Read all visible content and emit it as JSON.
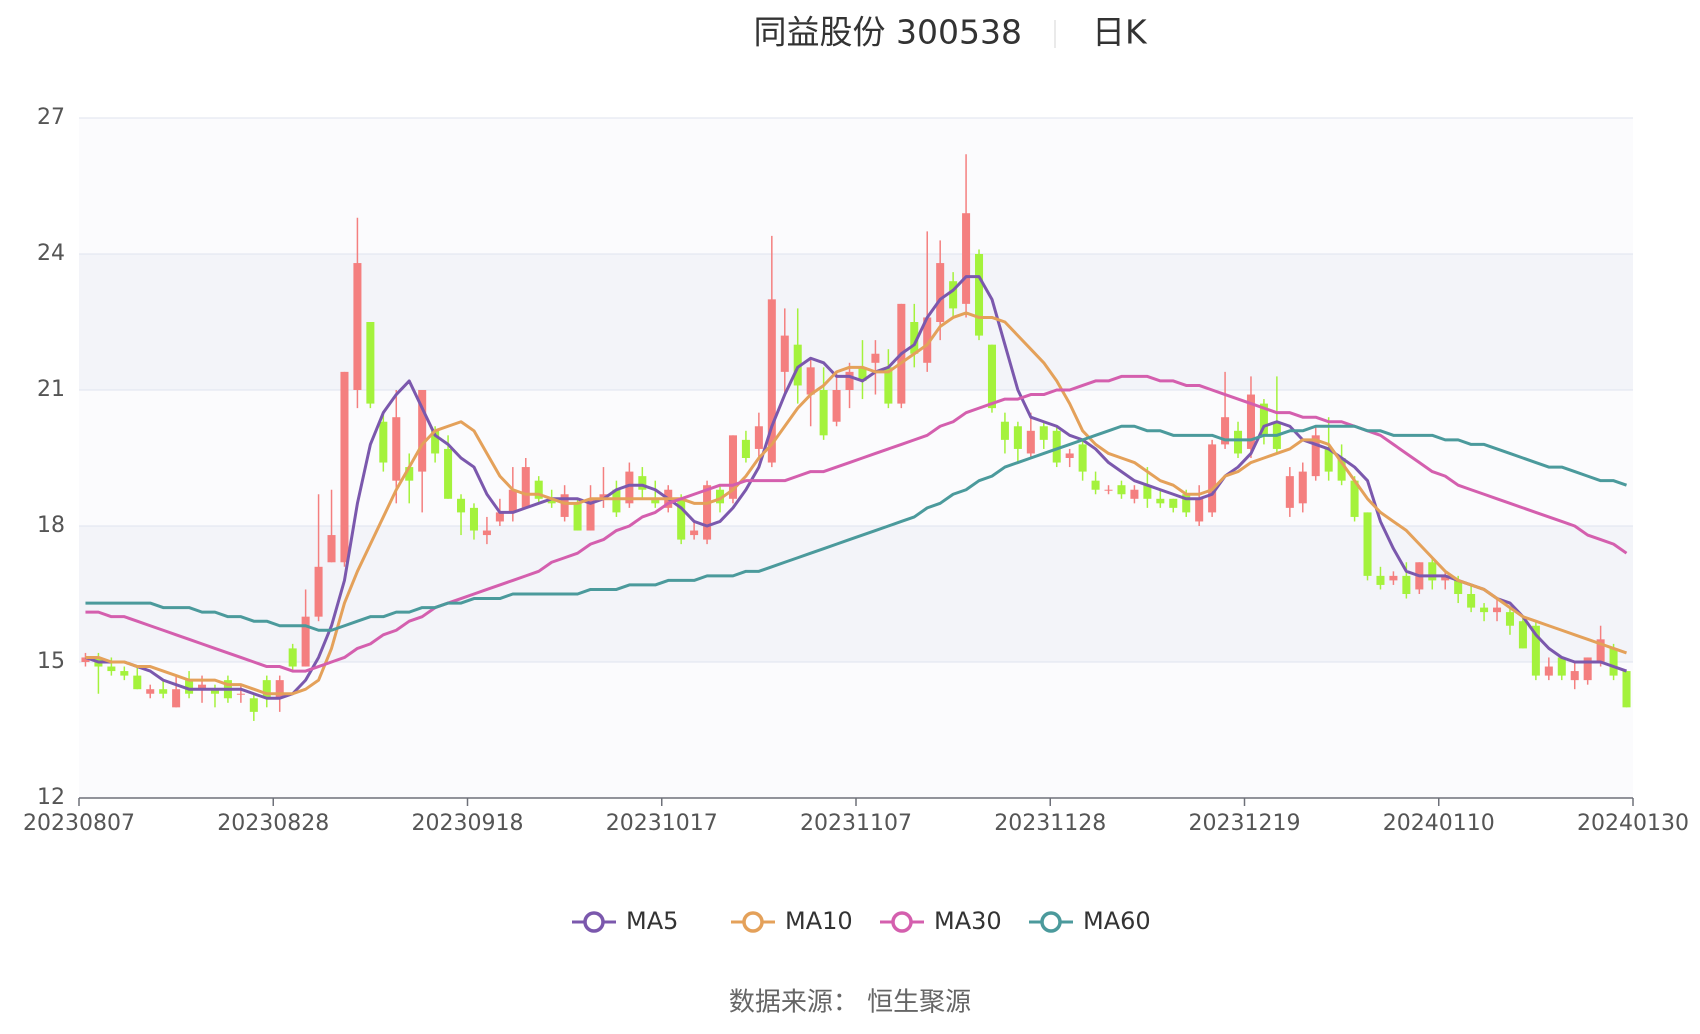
{
  "chart_data": {
    "type": "candlestick",
    "title": "同益股份 300538",
    "subtitle": "日K",
    "source": "数据来源： 恒生聚源",
    "up_color": "#f47f7f",
    "down_color": "#a4f23c",
    "grid": true,
    "ylim": [
      12,
      27
    ],
    "yticks": [
      12,
      15,
      18,
      21,
      24,
      27
    ],
    "categories": [
      "20230807",
      null,
      null,
      null,
      null,
      null,
      null,
      null,
      null,
      null,
      null,
      null,
      null,
      null,
      null,
      "20230828",
      null,
      null,
      null,
      null,
      null,
      null,
      null,
      null,
      null,
      null,
      null,
      null,
      null,
      null,
      "20230918",
      null,
      null,
      null,
      null,
      null,
      null,
      null,
      null,
      null,
      null,
      null,
      null,
      null,
      null,
      "20231017",
      null,
      null,
      null,
      null,
      null,
      null,
      null,
      null,
      null,
      null,
      null,
      null,
      null,
      null,
      "20231107",
      null,
      null,
      null,
      null,
      null,
      null,
      null,
      null,
      null,
      null,
      null,
      null,
      null,
      null,
      "20231128",
      null,
      null,
      null,
      null,
      null,
      null,
      null,
      null,
      null,
      null,
      null,
      null,
      null,
      null,
      "20231219",
      null,
      null,
      null,
      null,
      null,
      null,
      null,
      null,
      null,
      null,
      null,
      null,
      null,
      null,
      "20240110",
      null,
      null,
      null,
      null,
      null,
      null,
      null,
      null,
      null,
      null,
      null,
      null,
      null,
      "20240130"
    ],
    "candles": [
      [
        15.0,
        15.1,
        14.9,
        15.2
      ],
      [
        15.1,
        14.9,
        14.3,
        15.2
      ],
      [
        14.9,
        14.8,
        14.7,
        15.1
      ],
      [
        14.8,
        14.7,
        14.6,
        14.9
      ],
      [
        14.7,
        14.4,
        14.4,
        14.9
      ],
      [
        14.3,
        14.4,
        14.2,
        14.5
      ],
      [
        14.4,
        14.3,
        14.2,
        14.6
      ],
      [
        14.0,
        14.4,
        14.0,
        14.7
      ],
      [
        14.6,
        14.3,
        14.2,
        14.8
      ],
      [
        14.4,
        14.5,
        14.1,
        14.7
      ],
      [
        14.4,
        14.3,
        14.0,
        14.5
      ],
      [
        14.6,
        14.2,
        14.1,
        14.7
      ],
      [
        14.3,
        14.3,
        14.1,
        14.5
      ],
      [
        14.2,
        13.9,
        13.7,
        14.3
      ],
      [
        14.6,
        14.2,
        14.0,
        14.7
      ],
      [
        14.2,
        14.6,
        13.9,
        14.7
      ],
      [
        15.3,
        14.9,
        14.8,
        15.4
      ],
      [
        14.9,
        16.0,
        14.9,
        16.6
      ],
      [
        16.0,
        17.1,
        15.9,
        18.7
      ],
      [
        17.2,
        17.8,
        17.2,
        18.8
      ],
      [
        17.2,
        21.4,
        17.1,
        21.4
      ],
      [
        21.0,
        23.8,
        20.6,
        24.8
      ],
      [
        22.5,
        20.7,
        20.6,
        22.5
      ],
      [
        20.3,
        19.4,
        19.2,
        20.5
      ],
      [
        19.0,
        20.4,
        18.5,
        21.0
      ],
      [
        19.3,
        19.0,
        18.5,
        19.6
      ],
      [
        19.2,
        21.0,
        18.3,
        21.0
      ],
      [
        20.1,
        19.6,
        19.4,
        20.2
      ],
      [
        19.7,
        18.6,
        18.6,
        20.0
      ],
      [
        18.6,
        18.3,
        17.8,
        18.7
      ],
      [
        18.4,
        17.9,
        17.7,
        18.5
      ],
      [
        17.8,
        17.9,
        17.6,
        18.2
      ],
      [
        18.1,
        18.3,
        18.0,
        18.6
      ],
      [
        18.3,
        18.8,
        18.1,
        19.3
      ],
      [
        18.4,
        19.3,
        18.4,
        19.5
      ],
      [
        19.0,
        18.6,
        18.5,
        19.1
      ],
      [
        18.6,
        18.5,
        18.4,
        18.8
      ],
      [
        18.2,
        18.7,
        18.1,
        18.9
      ],
      [
        18.5,
        17.9,
        17.9,
        18.6
      ],
      [
        17.9,
        18.6,
        17.9,
        18.9
      ],
      [
        18.6,
        18.7,
        18.4,
        19.3
      ],
      [
        18.8,
        18.3,
        18.2,
        19.0
      ],
      [
        18.5,
        19.2,
        18.4,
        19.4
      ],
      [
        19.1,
        18.8,
        18.6,
        19.3
      ],
      [
        18.6,
        18.5,
        18.4,
        19.0
      ],
      [
        18.4,
        18.8,
        18.3,
        18.9
      ],
      [
        18.6,
        17.7,
        17.6,
        18.7
      ],
      [
        17.8,
        17.9,
        17.7,
        18.1
      ],
      [
        17.7,
        18.9,
        17.6,
        19.0
      ],
      [
        18.8,
        18.5,
        18.3,
        18.9
      ],
      [
        18.6,
        20.0,
        18.5,
        20.0
      ],
      [
        19.9,
        19.5,
        19.4,
        20.1
      ],
      [
        19.7,
        20.2,
        19.5,
        20.5
      ],
      [
        19.4,
        23.0,
        19.3,
        24.4
      ],
      [
        21.4,
        22.2,
        20.9,
        22.8
      ],
      [
        22.0,
        21.1,
        20.7,
        22.8
      ],
      [
        20.9,
        21.5,
        20.2,
        21.7
      ],
      [
        21.0,
        20.0,
        19.9,
        21.5
      ],
      [
        20.3,
        21.0,
        20.2,
        21.4
      ],
      [
        21.0,
        21.4,
        20.6,
        21.6
      ],
      [
        21.5,
        21.2,
        20.8,
        22.1
      ],
      [
        21.6,
        21.8,
        20.9,
        22.1
      ],
      [
        21.5,
        20.7,
        20.6,
        21.9
      ],
      [
        20.7,
        22.9,
        20.6,
        22.9
      ],
      [
        22.5,
        21.8,
        21.5,
        22.9
      ],
      [
        21.6,
        22.6,
        21.4,
        24.5
      ],
      [
        22.5,
        23.8,
        22.1,
        24.3
      ],
      [
        23.4,
        22.8,
        22.6,
        23.6
      ],
      [
        22.9,
        24.9,
        22.6,
        26.2
      ],
      [
        24.0,
        22.2,
        22.1,
        24.1
      ],
      [
        22.0,
        20.6,
        20.5,
        22.0
      ],
      [
        20.3,
        19.9,
        19.6,
        20.5
      ],
      [
        20.2,
        19.7,
        19.4,
        20.3
      ],
      [
        19.6,
        20.1,
        19.5,
        20.5
      ],
      [
        20.2,
        19.9,
        19.7,
        20.3
      ],
      [
        20.1,
        19.4,
        19.3,
        20.2
      ],
      [
        19.5,
        19.6,
        19.3,
        19.7
      ],
      [
        19.8,
        19.2,
        19.0,
        19.9
      ],
      [
        19.0,
        18.8,
        18.7,
        19.2
      ],
      [
        18.8,
        18.8,
        18.7,
        18.9
      ],
      [
        18.9,
        18.7,
        18.6,
        19.0
      ],
      [
        18.6,
        18.8,
        18.5,
        18.9
      ],
      [
        18.9,
        18.6,
        18.4,
        19.3
      ],
      [
        18.6,
        18.5,
        18.4,
        18.8
      ],
      [
        18.6,
        18.4,
        18.3,
        18.6
      ],
      [
        18.7,
        18.3,
        18.2,
        18.8
      ],
      [
        18.1,
        18.6,
        18.0,
        18.9
      ],
      [
        18.3,
        19.8,
        18.2,
        19.9
      ],
      [
        19.8,
        20.4,
        19.7,
        21.4
      ],
      [
        20.1,
        19.6,
        19.5,
        20.3
      ],
      [
        19.7,
        20.9,
        19.5,
        21.3
      ],
      [
        20.7,
        20.0,
        19.8,
        20.8
      ],
      [
        20.3,
        19.7,
        19.6,
        21.3
      ],
      [
        18.4,
        19.1,
        18.2,
        19.3
      ],
      [
        18.5,
        19.2,
        18.3,
        19.4
      ],
      [
        19.1,
        20.0,
        19.0,
        20.2
      ],
      [
        19.7,
        19.2,
        19.0,
        20.4
      ],
      [
        19.5,
        19.0,
        18.9,
        19.8
      ],
      [
        19.0,
        18.2,
        18.1,
        19.1
      ],
      [
        18.3,
        16.9,
        16.8,
        18.3
      ],
      [
        16.9,
        16.7,
        16.6,
        17.1
      ],
      [
        16.8,
        16.9,
        16.7,
        17.0
      ],
      [
        16.9,
        16.5,
        16.4,
        17.2
      ],
      [
        16.6,
        17.2,
        16.5,
        17.2
      ],
      [
        17.2,
        16.8,
        16.6,
        17.3
      ],
      [
        16.8,
        16.9,
        16.6,
        17.0
      ],
      [
        16.8,
        16.5,
        16.3,
        16.9
      ],
      [
        16.5,
        16.2,
        16.1,
        16.7
      ],
      [
        16.2,
        16.1,
        15.9,
        16.3
      ],
      [
        16.1,
        16.2,
        15.9,
        16.4
      ],
      [
        16.1,
        15.8,
        15.6,
        16.2
      ],
      [
        15.9,
        15.3,
        15.3,
        16.0
      ],
      [
        15.8,
        14.7,
        14.6,
        15.9
      ],
      [
        14.7,
        14.9,
        14.6,
        15.1
      ],
      [
        15.1,
        14.7,
        14.6,
        15.1
      ],
      [
        14.6,
        14.8,
        14.4,
        15.0
      ],
      [
        14.6,
        15.1,
        14.5,
        15.1
      ],
      [
        15.0,
        15.5,
        14.9,
        15.8
      ],
      [
        15.3,
        14.7,
        14.6,
        15.4
      ],
      [
        14.8,
        14.0,
        14.0,
        14.8
      ]
    ],
    "series": [
      {
        "name": "MA5",
        "color": "#7b58ad",
        "values": [
          15.1,
          15.0,
          15.0,
          15.0,
          14.9,
          14.8,
          14.6,
          14.5,
          14.4,
          14.4,
          14.4,
          14.4,
          14.4,
          14.3,
          14.2,
          14.2,
          14.3,
          14.6,
          15.1,
          15.8,
          16.8,
          18.5,
          19.8,
          20.5,
          20.9,
          21.2,
          20.6,
          20.0,
          19.8,
          19.5,
          19.3,
          18.7,
          18.3,
          18.3,
          18.4,
          18.5,
          18.6,
          18.6,
          18.6,
          18.5,
          18.6,
          18.8,
          18.9,
          18.9,
          18.8,
          18.6,
          18.4,
          18.1,
          18.0,
          18.1,
          18.4,
          18.8,
          19.3,
          20.2,
          20.9,
          21.5,
          21.7,
          21.6,
          21.3,
          21.3,
          21.2,
          21.4,
          21.5,
          21.8,
          22.0,
          22.6,
          23.0,
          23.2,
          23.5,
          23.5,
          23.0,
          22.0,
          21.0,
          20.4,
          20.3,
          20.2,
          20.0,
          19.9,
          19.7,
          19.4,
          19.2,
          19.0,
          18.9,
          18.8,
          18.7,
          18.6,
          18.6,
          18.7,
          19.1,
          19.3,
          19.6,
          20.2,
          20.3,
          20.2,
          19.9,
          19.8,
          19.7,
          19.5,
          19.3,
          19.0,
          18.1,
          17.5,
          17.0,
          16.9,
          16.9,
          16.9,
          16.8,
          16.7,
          16.6,
          16.4,
          16.3,
          16.0,
          15.6,
          15.3,
          15.1,
          15.0,
          15.0,
          15.0,
          14.9,
          14.8
        ]
      },
      {
        "name": "MA10",
        "color": "#e4a15a",
        "values": [
          15.1,
          15.1,
          15.0,
          15.0,
          14.9,
          14.9,
          14.8,
          14.7,
          14.6,
          14.6,
          14.6,
          14.5,
          14.5,
          14.4,
          14.3,
          14.3,
          14.3,
          14.4,
          14.6,
          15.3,
          16.3,
          17.0,
          17.6,
          18.2,
          18.8,
          19.3,
          19.8,
          20.1,
          20.2,
          20.3,
          20.1,
          19.6,
          19.1,
          18.8,
          18.7,
          18.7,
          18.6,
          18.5,
          18.5,
          18.6,
          18.6,
          18.6,
          18.6,
          18.6,
          18.6,
          18.6,
          18.6,
          18.5,
          18.5,
          18.6,
          18.8,
          19.1,
          19.5,
          19.8,
          20.2,
          20.6,
          20.9,
          21.1,
          21.4,
          21.5,
          21.5,
          21.4,
          21.4,
          21.6,
          21.8,
          22.0,
          22.4,
          22.6,
          22.7,
          22.6,
          22.6,
          22.5,
          22.2,
          21.9,
          21.6,
          21.2,
          20.7,
          20.1,
          19.8,
          19.6,
          19.5,
          19.4,
          19.2,
          19.0,
          18.9,
          18.7,
          18.7,
          18.8,
          19.1,
          19.2,
          19.4,
          19.5,
          19.6,
          19.7,
          19.9,
          19.9,
          19.8,
          19.4,
          19.0,
          18.6,
          18.3,
          18.1,
          17.9,
          17.6,
          17.3,
          17.0,
          16.8,
          16.7,
          16.6,
          16.4,
          16.2,
          16.0,
          15.9,
          15.8,
          15.7,
          15.6,
          15.5,
          15.4,
          15.3,
          15.2
        ]
      },
      {
        "name": "MA30",
        "color": "#d45fae",
        "values": [
          16.1,
          16.1,
          16.0,
          16.0,
          15.9,
          15.8,
          15.7,
          15.6,
          15.5,
          15.4,
          15.3,
          15.2,
          15.1,
          15.0,
          14.9,
          14.9,
          14.8,
          14.8,
          14.9,
          15.0,
          15.1,
          15.3,
          15.4,
          15.6,
          15.7,
          15.9,
          16.0,
          16.2,
          16.3,
          16.4,
          16.5,
          16.6,
          16.7,
          16.8,
          16.9,
          17.0,
          17.2,
          17.3,
          17.4,
          17.6,
          17.7,
          17.9,
          18.0,
          18.2,
          18.3,
          18.5,
          18.6,
          18.7,
          18.8,
          18.9,
          18.9,
          19.0,
          19.0,
          19.0,
          19.0,
          19.1,
          19.2,
          19.2,
          19.3,
          19.4,
          19.5,
          19.6,
          19.7,
          19.8,
          19.9,
          20.0,
          20.2,
          20.3,
          20.5,
          20.6,
          20.7,
          20.8,
          20.8,
          20.9,
          20.9,
          21.0,
          21.0,
          21.1,
          21.2,
          21.2,
          21.3,
          21.3,
          21.3,
          21.2,
          21.2,
          21.1,
          21.1,
          21.0,
          20.9,
          20.8,
          20.7,
          20.6,
          20.5,
          20.5,
          20.4,
          20.4,
          20.3,
          20.3,
          20.2,
          20.1,
          20.0,
          19.8,
          19.6,
          19.4,
          19.2,
          19.1,
          18.9,
          18.8,
          18.7,
          18.6,
          18.5,
          18.4,
          18.3,
          18.2,
          18.1,
          18.0,
          17.8,
          17.7,
          17.6,
          17.4
        ]
      },
      {
        "name": "MA60",
        "color": "#4b9a9c",
        "values": [
          16.3,
          16.3,
          16.3,
          16.3,
          16.3,
          16.3,
          16.2,
          16.2,
          16.2,
          16.1,
          16.1,
          16.0,
          16.0,
          15.9,
          15.9,
          15.8,
          15.8,
          15.8,
          15.7,
          15.7,
          15.8,
          15.9,
          16.0,
          16.0,
          16.1,
          16.1,
          16.2,
          16.2,
          16.3,
          16.3,
          16.4,
          16.4,
          16.4,
          16.5,
          16.5,
          16.5,
          16.5,
          16.5,
          16.5,
          16.6,
          16.6,
          16.6,
          16.7,
          16.7,
          16.7,
          16.8,
          16.8,
          16.8,
          16.9,
          16.9,
          16.9,
          17.0,
          17.0,
          17.1,
          17.2,
          17.3,
          17.4,
          17.5,
          17.6,
          17.7,
          17.8,
          17.9,
          18.0,
          18.1,
          18.2,
          18.4,
          18.5,
          18.7,
          18.8,
          19.0,
          19.1,
          19.3,
          19.4,
          19.5,
          19.6,
          19.7,
          19.8,
          19.9,
          20.0,
          20.1,
          20.2,
          20.2,
          20.1,
          20.1,
          20.0,
          20.0,
          20.0,
          20.0,
          19.9,
          19.9,
          19.9,
          20.0,
          20.0,
          20.1,
          20.1,
          20.2,
          20.2,
          20.2,
          20.2,
          20.1,
          20.1,
          20.0,
          20.0,
          20.0,
          20.0,
          19.9,
          19.9,
          19.8,
          19.8,
          19.7,
          19.6,
          19.5,
          19.4,
          19.3,
          19.3,
          19.2,
          19.1,
          19.0,
          19.0,
          18.9
        ]
      }
    ]
  }
}
